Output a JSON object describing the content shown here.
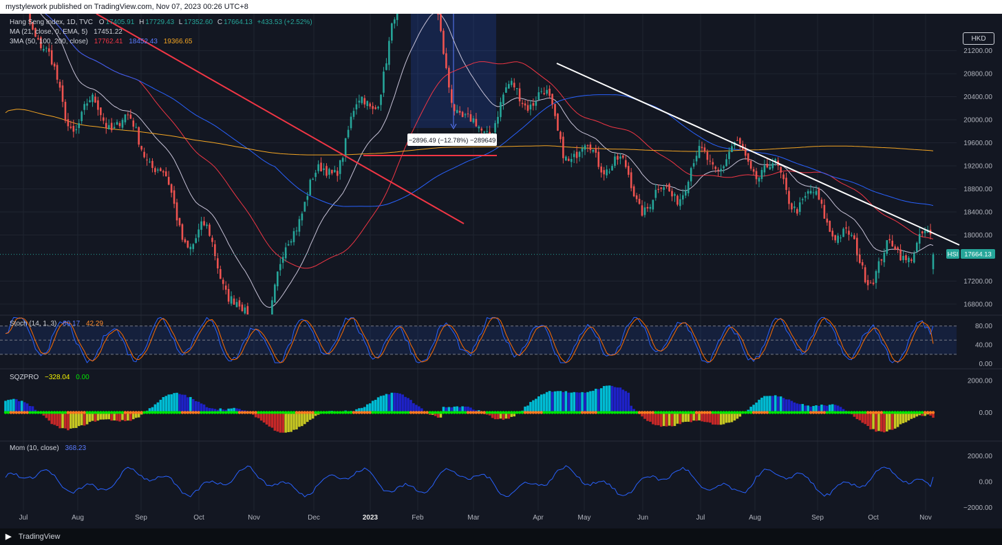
{
  "header": {
    "attribution": "mystylework published on TradingView.com, Nov 07, 2023 00:26 UTC+8"
  },
  "footer": {
    "brand": "TradingView",
    "logo": "tv-logo-icon"
  },
  "currency_badge": "HKD",
  "price_tag": {
    "symbol": "HSI",
    "value": "17664.13"
  },
  "measure_label": "−2896.49 (−12.78%) −289649",
  "legend": {
    "main": {
      "title": "Hang Seng Index, 1D, TVC",
      "o_label": "O",
      "o": "17405.91",
      "h_label": "H",
      "h": "17729.43",
      "l_label": "L",
      "l": "17352.60",
      "c_label": "C",
      "c": "17664.13",
      "chg": "+433.53 (+2.52%)"
    },
    "ma": {
      "label": "MA (21, close, 0, EMA, 5)",
      "value": "17451.22"
    },
    "tma": {
      "label": "3MA (50, 100, 200, close)",
      "v1": "17762.41",
      "v2": "18452.43",
      "v3": "19366.65"
    },
    "stoch": {
      "label": "Stoch (14, 1, 3)",
      "k": "80.17",
      "d": "42.29"
    },
    "sqz": {
      "label": "SQZPRO",
      "v1": "−328.04",
      "v2": "0.00"
    },
    "mom": {
      "label": "Mom (10, close)",
      "v": "368.23"
    }
  },
  "colors": {
    "background": "#131722",
    "up": "#26a69a",
    "down": "#ef5350",
    "ma_white": "#c8c3d8",
    "ma_red": "#f23645",
    "ma_blue": "#2962ff",
    "ma_orange": "#f5a623",
    "stoch_k": "#2962ff",
    "stoch_d": "#ff6d00",
    "mom": "#2962ff",
    "sqz_cyan": "#00bcd4",
    "sqz_blue": "#1e22c8",
    "sqz_red": "#c62828",
    "sqz_yellow": "#c7c722",
    "dot_green": "#00e600",
    "dot_orange": "#ff7c1f",
    "trend_white": "#ffffff",
    "trend_red": "#f23645"
  },
  "chart_data": [
    {
      "type": "candlestick",
      "title": "Hang Seng Index, 1D, TVC",
      "x_ticks": [
        "Jul",
        "Aug",
        "Sep",
        "Oct",
        "Nov",
        "Dec",
        "2023",
        "Feb",
        "Mar",
        "Apr",
        "May",
        "Jun",
        "Jul",
        "Aug",
        "Sep",
        "Oct",
        "Nov"
      ],
      "y_ticks": [
        21200,
        20800,
        20400,
        20000,
        19600,
        19200,
        18800,
        18400,
        18000,
        17200,
        16800
      ],
      "y_tick_labels": [
        "21200.00",
        "20800.00",
        "20400.00",
        "20000.00",
        "19600.00",
        "19200.00",
        "18800.00",
        "18400.00",
        "18000.00",
        "17200.00",
        "16800.00"
      ],
      "ylim": [
        16620,
        21840
      ],
      "close_path": [
        [
          "Jul",
          21900
        ],
        [
          "Aug",
          20100
        ],
        [
          "Sep",
          19700
        ],
        [
          "Oct",
          17800
        ],
        [
          "Nov",
          16400
        ],
        [
          "Dec",
          18700
        ],
        [
          "2023",
          20500
        ],
        [
          "Feb",
          22400
        ],
        [
          "Mar",
          19900
        ],
        [
          "Apr",
          20400
        ],
        [
          "May",
          19400
        ],
        [
          "Jun",
          18700
        ],
        [
          "Jul",
          19100
        ],
        [
          "Aug",
          19400
        ],
        [
          "Sep",
          18300
        ],
        [
          "Oct",
          17600
        ],
        [
          "Nov",
          17664
        ]
      ],
      "last": 17664.13,
      "series": [
        {
          "name": "MA (21, close, 0, EMA, 5)",
          "last": 17451.22
        },
        {
          "name": "3MA 50",
          "last": 17762.41
        },
        {
          "name": "3MA 100",
          "last": 18452.43
        },
        {
          "name": "3MA 200",
          "last": 19366.65
        }
      ],
      "annotations": [
        {
          "type": "measure",
          "text": "−2896.49 (−12.78%) −289649"
        }
      ]
    },
    {
      "type": "line",
      "title": "Stoch (14, 1, 3)",
      "y_ticks": [
        80,
        40,
        0
      ],
      "y_tick_labels": [
        "80.00",
        "40.00",
        "0.00"
      ],
      "ylim": [
        -8,
        100
      ],
      "band": [
        20,
        80
      ],
      "series": [
        {
          "name": "K",
          "last": 80.17
        },
        {
          "name": "D",
          "last": 42.29
        }
      ]
    },
    {
      "type": "bar",
      "title": "SQZPRO",
      "y_ticks": [
        2000,
        0
      ],
      "y_tick_labels": [
        "2000.00",
        "0.00"
      ],
      "ylim": [
        -1750,
        2650
      ],
      "last": -328.04
    },
    {
      "type": "line",
      "title": "Mom (10, close)",
      "y_ticks": [
        2000,
        0,
        -2000
      ],
      "y_tick_labels": [
        "2000.00",
        "0.00",
        "−2000.00"
      ],
      "ylim": [
        -2250,
        3100
      ],
      "last": 368.23
    }
  ]
}
